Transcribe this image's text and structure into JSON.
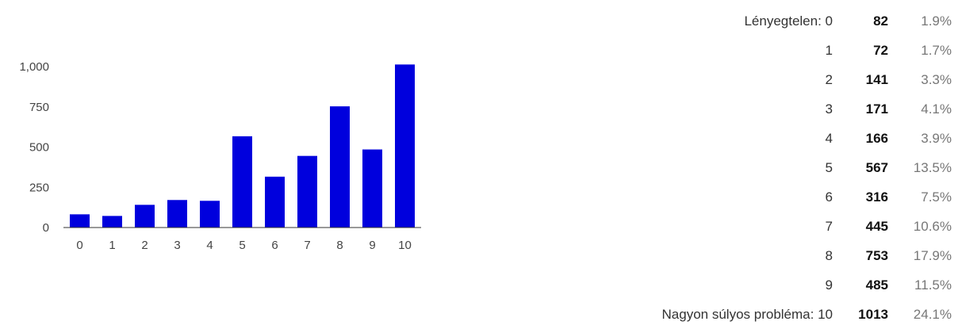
{
  "chart_data": {
    "type": "bar",
    "categories": [
      "0",
      "1",
      "2",
      "3",
      "4",
      "5",
      "6",
      "7",
      "8",
      "9",
      "10"
    ],
    "values": [
      82,
      72,
      141,
      171,
      166,
      567,
      316,
      445,
      753,
      485,
      1013
    ],
    "yticks": [
      "0",
      "250",
      "500",
      "750",
      "1,000"
    ],
    "ylim": [
      0,
      1000
    ],
    "grid": false,
    "bar_color": "#0000dd"
  },
  "stats": {
    "rows": [
      {
        "label": "Lényegtelen: 0",
        "count": "82",
        "pct": "1.9%"
      },
      {
        "label": "1",
        "count": "72",
        "pct": "1.7%"
      },
      {
        "label": "2",
        "count": "141",
        "pct": "3.3%"
      },
      {
        "label": "3",
        "count": "171",
        "pct": "4.1%"
      },
      {
        "label": "4",
        "count": "166",
        "pct": "3.9%"
      },
      {
        "label": "5",
        "count": "567",
        "pct": "13.5%"
      },
      {
        "label": "6",
        "count": "316",
        "pct": "7.5%"
      },
      {
        "label": "7",
        "count": "445",
        "pct": "10.6%"
      },
      {
        "label": "8",
        "count": "753",
        "pct": "17.9%"
      },
      {
        "label": "9",
        "count": "485",
        "pct": "11.5%"
      },
      {
        "label": "Nagyon súlyos probléma: 10",
        "count": "1013",
        "pct": "24.1%"
      }
    ]
  }
}
